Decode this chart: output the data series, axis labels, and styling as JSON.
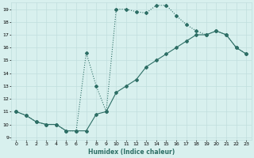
{
  "xlabel": "Humidex (Indice chaleur)",
  "background_color": "#d8f0ee",
  "grid_color": "#c0dede",
  "line_color": "#2d6e65",
  "xlim": [
    -0.5,
    23.5
  ],
  "ylim": [
    8.8,
    19.5
  ],
  "xticks": [
    0,
    1,
    2,
    3,
    4,
    5,
    6,
    7,
    8,
    9,
    10,
    11,
    12,
    13,
    14,
    15,
    16,
    17,
    18,
    19,
    20,
    21,
    22,
    23
  ],
  "yticks": [
    9,
    10,
    11,
    12,
    13,
    14,
    15,
    16,
    17,
    18,
    19
  ],
  "line1_x": [
    0,
    1,
    2,
    3,
    4,
    5,
    6,
    7,
    8,
    9,
    10,
    11,
    12,
    13,
    14,
    15,
    16,
    17,
    18,
    19,
    20,
    21,
    22,
    23
  ],
  "line1_y": [
    11.0,
    10.7,
    10.2,
    10.0,
    10.0,
    9.5,
    9.5,
    9.5,
    10.8,
    11.0,
    12.5,
    13.0,
    13.5,
    14.5,
    15.0,
    15.5,
    16.0,
    16.5,
    17.0,
    17.0,
    17.3,
    17.0,
    16.0,
    15.5
  ],
  "line2_x": [
    0,
    1,
    2,
    3,
    4,
    5,
    6,
    7,
    8,
    9,
    10,
    11,
    12,
    13,
    14,
    15,
    16,
    17,
    18,
    19,
    20,
    21,
    22,
    23
  ],
  "line2_y": [
    11.0,
    10.7,
    10.2,
    10.0,
    10.0,
    9.5,
    9.5,
    15.6,
    13.0,
    11.0,
    19.0,
    19.0,
    18.8,
    18.7,
    19.3,
    19.3,
    18.5,
    17.8,
    17.3,
    17.0,
    17.3,
    17.0,
    16.0,
    15.5
  ]
}
